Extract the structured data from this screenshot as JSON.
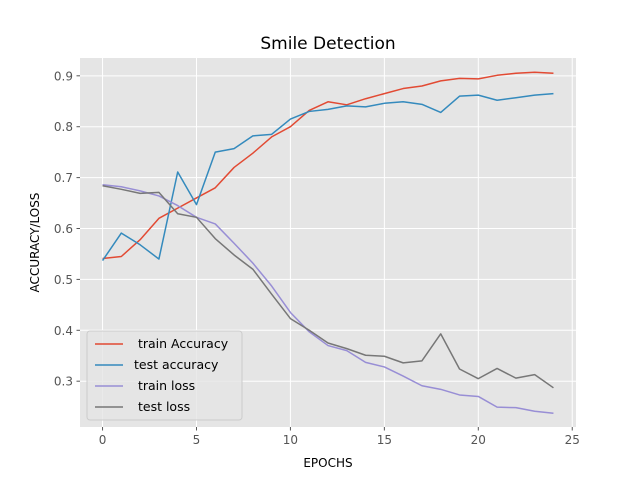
{
  "chart_data": {
    "type": "line",
    "title": "Smile Detection",
    "xlabel": "EPOCHS",
    "ylabel": "ACCURACY/LOSS",
    "xlim": [
      -1.2,
      25.2
    ],
    "ylim": [
      0.21,
      0.935
    ],
    "xticks": [
      "0",
      "5",
      "10",
      "15",
      "20",
      "25"
    ],
    "yticks": [
      "0.3",
      "0.4",
      "0.5",
      "0.6",
      "0.7",
      "0.8",
      "0.9"
    ],
    "grid": true,
    "legend_position": "lower-left",
    "x": [
      0,
      1,
      2,
      3,
      4,
      5,
      6,
      7,
      8,
      9,
      10,
      11,
      12,
      13,
      14,
      15,
      16,
      17,
      18,
      19,
      20,
      21,
      22,
      23,
      24
    ],
    "series": [
      {
        "name": " train Accuracy",
        "color": "#E24A33",
        "values": [
          0.541,
          0.545,
          0.578,
          0.62,
          0.64,
          0.66,
          0.68,
          0.72,
          0.748,
          0.78,
          0.8,
          0.832,
          0.849,
          0.843,
          0.855,
          0.865,
          0.875,
          0.88,
          0.89,
          0.895,
          0.894,
          0.901,
          0.905,
          0.907,
          0.905
        ]
      },
      {
        "name": "test accuracy",
        "color": "#348ABD",
        "values": [
          0.537,
          0.591,
          0.568,
          0.54,
          0.711,
          0.647,
          0.75,
          0.757,
          0.782,
          0.785,
          0.815,
          0.83,
          0.834,
          0.841,
          0.839,
          0.846,
          0.849,
          0.844,
          0.828,
          0.86,
          0.862,
          0.852,
          0.857,
          0.862,
          0.865
        ]
      },
      {
        "name": " train loss",
        "color": "#988ED5",
        "values": [
          0.686,
          0.682,
          0.674,
          0.664,
          0.645,
          0.622,
          0.609,
          0.571,
          0.532,
          0.487,
          0.435,
          0.397,
          0.37,
          0.36,
          0.337,
          0.328,
          0.31,
          0.291,
          0.284,
          0.273,
          0.27,
          0.249,
          0.248,
          0.241,
          0.237
        ]
      },
      {
        "name": " test loss",
        "color": "#777777",
        "values": [
          0.684,
          0.677,
          0.669,
          0.671,
          0.629,
          0.622,
          0.58,
          0.548,
          0.52,
          0.471,
          0.423,
          0.4,
          0.375,
          0.364,
          0.351,
          0.349,
          0.336,
          0.34,
          0.393,
          0.324,
          0.305,
          0.325,
          0.306,
          0.313,
          0.287
        ]
      }
    ]
  }
}
